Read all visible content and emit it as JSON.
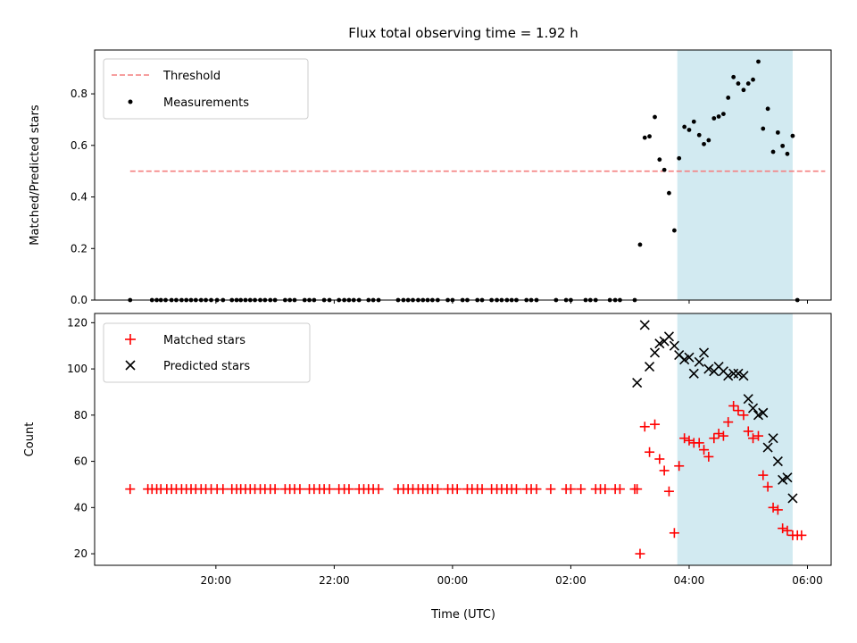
{
  "chart_data": [
    {
      "type": "scatter",
      "title": "Flux total observing time = 1.92 h",
      "xlabel": "",
      "ylabel": "Matched/Predicted stars",
      "xlim_hours": [
        17.95,
        30.4
      ],
      "ylim": [
        0,
        0.97
      ],
      "yticks": [
        0.0,
        0.2,
        0.4,
        0.6,
        0.8
      ],
      "yticklabels": [
        "0.0",
        "0.2",
        "0.4",
        "0.6",
        "0.8"
      ],
      "threshold": {
        "name": "Threshold",
        "value": 0.5,
        "x_range_hours": [
          18.55,
          30.3
        ],
        "color": "#f47f7f"
      },
      "shaded_region_hours": [
        27.8,
        29.75
      ],
      "shade_color": "#add8e6",
      "legend": {
        "placement": "top-left",
        "entries": [
          "Threshold",
          "Measurements"
        ]
      },
      "series": [
        {
          "name": "Measurements",
          "color": "#000000",
          "marker": "dot",
          "points": [
            [
              18.55,
              0
            ],
            [
              18.92,
              0
            ],
            [
              19.0,
              0
            ],
            [
              19.07,
              0
            ],
            [
              19.15,
              0
            ],
            [
              19.25,
              0
            ],
            [
              19.33,
              0
            ],
            [
              19.42,
              0
            ],
            [
              19.5,
              0
            ],
            [
              19.58,
              0
            ],
            [
              19.66,
              0
            ],
            [
              19.75,
              0
            ],
            [
              19.83,
              0
            ],
            [
              19.92,
              0
            ],
            [
              20.02,
              0
            ],
            [
              20.12,
              0
            ],
            [
              20.27,
              0
            ],
            [
              20.35,
              0
            ],
            [
              20.42,
              0
            ],
            [
              20.5,
              0
            ],
            [
              20.58,
              0
            ],
            [
              20.66,
              0
            ],
            [
              20.75,
              0
            ],
            [
              20.83,
              0
            ],
            [
              20.92,
              0
            ],
            [
              21.0,
              0
            ],
            [
              21.17,
              0
            ],
            [
              21.25,
              0
            ],
            [
              21.33,
              0
            ],
            [
              21.5,
              0
            ],
            [
              21.58,
              0
            ],
            [
              21.66,
              0
            ],
            [
              21.83,
              0
            ],
            [
              21.92,
              0
            ],
            [
              22.08,
              0
            ],
            [
              22.17,
              0
            ],
            [
              22.25,
              0
            ],
            [
              22.33,
              0
            ],
            [
              22.42,
              0
            ],
            [
              22.58,
              0
            ],
            [
              22.66,
              0
            ],
            [
              22.75,
              0
            ],
            [
              23.08,
              0
            ],
            [
              23.17,
              0
            ],
            [
              23.25,
              0
            ],
            [
              23.33,
              0
            ],
            [
              23.42,
              0
            ],
            [
              23.5,
              0
            ],
            [
              23.58,
              0
            ],
            [
              23.66,
              0
            ],
            [
              23.75,
              0
            ],
            [
              23.92,
              0
            ],
            [
              24.0,
              0
            ],
            [
              24.17,
              0
            ],
            [
              24.25,
              0
            ],
            [
              24.42,
              0
            ],
            [
              24.5,
              0
            ],
            [
              24.66,
              0
            ],
            [
              24.75,
              0
            ],
            [
              24.83,
              0
            ],
            [
              24.92,
              0
            ],
            [
              25.0,
              0
            ],
            [
              25.08,
              0
            ],
            [
              25.25,
              0
            ],
            [
              25.33,
              0
            ],
            [
              25.42,
              0
            ],
            [
              25.75,
              0
            ],
            [
              25.92,
              0
            ],
            [
              26.0,
              0
            ],
            [
              26.25,
              0
            ],
            [
              26.33,
              0
            ],
            [
              26.42,
              0
            ],
            [
              26.66,
              0
            ],
            [
              26.75,
              0
            ],
            [
              26.83,
              0
            ],
            [
              27.08,
              0
            ],
            [
              27.17,
              0.215
            ],
            [
              27.25,
              0.63
            ],
            [
              27.33,
              0.635
            ],
            [
              27.42,
              0.71
            ],
            [
              27.5,
              0.545
            ],
            [
              27.58,
              0.505
            ],
            [
              27.66,
              0.415
            ],
            [
              27.75,
              0.27
            ],
            [
              27.83,
              0.55
            ],
            [
              27.92,
              0.672
            ],
            [
              28.0,
              0.66
            ],
            [
              28.08,
              0.692
            ],
            [
              28.17,
              0.64
            ],
            [
              28.25,
              0.605
            ],
            [
              28.33,
              0.62
            ],
            [
              28.42,
              0.705
            ],
            [
              28.5,
              0.712
            ],
            [
              28.58,
              0.722
            ],
            [
              28.66,
              0.785
            ],
            [
              28.75,
              0.865
            ],
            [
              28.83,
              0.84
            ],
            [
              28.92,
              0.815
            ],
            [
              29.0,
              0.84
            ],
            [
              29.08,
              0.855
            ],
            [
              29.17,
              0.925
            ],
            [
              29.25,
              0.665
            ],
            [
              29.33,
              0.742
            ],
            [
              29.42,
              0.575
            ],
            [
              29.5,
              0.65
            ],
            [
              29.58,
              0.598
            ],
            [
              29.66,
              0.567
            ],
            [
              29.75,
              0.637
            ],
            [
              29.83,
              0
            ]
          ]
        }
      ]
    },
    {
      "type": "scatter",
      "title": "",
      "xlabel": "Time (UTC)",
      "ylabel": "Count",
      "xlim_hours": [
        17.95,
        30.4
      ],
      "ylim": [
        15,
        124
      ],
      "yticks": [
        20,
        40,
        60,
        80,
        100,
        120
      ],
      "yticklabels": [
        "20",
        "40",
        "60",
        "80",
        "100",
        "120"
      ],
      "xticks_hours": [
        20,
        22,
        24,
        26,
        28,
        30
      ],
      "xticklabels": [
        "20:00",
        "22:00",
        "00:00",
        "02:00",
        "04:00",
        "06:00"
      ],
      "shaded_region_hours": [
        27.8,
        29.75
      ],
      "shade_color": "#add8e6",
      "legend": {
        "placement": "top-left",
        "entries": [
          "Matched stars",
          "Predicted stars"
        ]
      },
      "series": [
        {
          "name": "Matched stars",
          "color": "#ff0000",
          "marker": "plus",
          "points": [
            [
              18.55,
              48
            ],
            [
              18.85,
              48
            ],
            [
              18.92,
              48
            ],
            [
              19.0,
              48
            ],
            [
              19.07,
              48
            ],
            [
              19.17,
              48
            ],
            [
              19.25,
              48
            ],
            [
              19.33,
              48
            ],
            [
              19.42,
              48
            ],
            [
              19.5,
              48
            ],
            [
              19.58,
              48
            ],
            [
              19.66,
              48
            ],
            [
              19.75,
              48
            ],
            [
              19.83,
              48
            ],
            [
              19.92,
              48
            ],
            [
              20.02,
              48
            ],
            [
              20.12,
              48
            ],
            [
              20.27,
              48
            ],
            [
              20.35,
              48
            ],
            [
              20.42,
              48
            ],
            [
              20.5,
              48
            ],
            [
              20.58,
              48
            ],
            [
              20.66,
              48
            ],
            [
              20.75,
              48
            ],
            [
              20.83,
              48
            ],
            [
              20.92,
              48
            ],
            [
              21.0,
              48
            ],
            [
              21.17,
              48
            ],
            [
              21.25,
              48
            ],
            [
              21.33,
              48
            ],
            [
              21.42,
              48
            ],
            [
              21.58,
              48
            ],
            [
              21.66,
              48
            ],
            [
              21.75,
              48
            ],
            [
              21.83,
              48
            ],
            [
              21.92,
              48
            ],
            [
              22.08,
              48
            ],
            [
              22.17,
              48
            ],
            [
              22.25,
              48
            ],
            [
              22.42,
              48
            ],
            [
              22.5,
              48
            ],
            [
              22.58,
              48
            ],
            [
              22.66,
              48
            ],
            [
              22.75,
              48
            ],
            [
              23.08,
              48
            ],
            [
              23.17,
              48
            ],
            [
              23.25,
              48
            ],
            [
              23.33,
              48
            ],
            [
              23.42,
              48
            ],
            [
              23.5,
              48
            ],
            [
              23.58,
              48
            ],
            [
              23.66,
              48
            ],
            [
              23.75,
              48
            ],
            [
              23.92,
              48
            ],
            [
              24.0,
              48
            ],
            [
              24.08,
              48
            ],
            [
              24.25,
              48
            ],
            [
              24.33,
              48
            ],
            [
              24.42,
              48
            ],
            [
              24.5,
              48
            ],
            [
              24.66,
              48
            ],
            [
              24.75,
              48
            ],
            [
              24.83,
              48
            ],
            [
              24.92,
              48
            ],
            [
              25.0,
              48
            ],
            [
              25.08,
              48
            ],
            [
              25.25,
              48
            ],
            [
              25.33,
              48
            ],
            [
              25.42,
              48
            ],
            [
              25.66,
              48
            ],
            [
              25.92,
              48
            ],
            [
              26.0,
              48
            ],
            [
              26.17,
              48
            ],
            [
              26.42,
              48
            ],
            [
              26.5,
              48
            ],
            [
              26.58,
              48
            ],
            [
              26.75,
              48
            ],
            [
              26.83,
              48
            ],
            [
              27.08,
              48
            ],
            [
              27.12,
              48
            ],
            [
              27.17,
              20
            ],
            [
              27.25,
              75
            ],
            [
              27.33,
              64
            ],
            [
              27.42,
              76
            ],
            [
              27.5,
              61
            ],
            [
              27.58,
              56
            ],
            [
              27.66,
              47
            ],
            [
              27.75,
              29
            ],
            [
              27.83,
              58
            ],
            [
              27.92,
              70
            ],
            [
              28.0,
              69
            ],
            [
              28.08,
              68
            ],
            [
              28.17,
              68
            ],
            [
              28.25,
              65
            ],
            [
              28.33,
              62
            ],
            [
              28.42,
              70
            ],
            [
              28.5,
              72
            ],
            [
              28.58,
              71
            ],
            [
              28.66,
              77
            ],
            [
              28.75,
              84
            ],
            [
              28.83,
              82
            ],
            [
              28.92,
              80
            ],
            [
              29.0,
              73
            ],
            [
              29.08,
              70
            ],
            [
              29.17,
              71
            ],
            [
              29.25,
              54
            ],
            [
              29.33,
              49
            ],
            [
              29.42,
              40
            ],
            [
              29.5,
              39
            ],
            [
              29.58,
              31
            ],
            [
              29.66,
              30
            ],
            [
              29.75,
              28
            ],
            [
              29.83,
              28
            ],
            [
              29.9,
              28
            ]
          ]
        },
        {
          "name": "Predicted stars",
          "color": "#000000",
          "marker": "x",
          "points": [
            [
              27.12,
              94
            ],
            [
              27.25,
              119
            ],
            [
              27.33,
              101
            ],
            [
              27.42,
              107
            ],
            [
              27.5,
              111
            ],
            [
              27.58,
              112
            ],
            [
              27.66,
              114
            ],
            [
              27.75,
              110
            ],
            [
              27.83,
              106
            ],
            [
              27.92,
              104
            ],
            [
              28.0,
              105
            ],
            [
              28.08,
              98
            ],
            [
              28.17,
              103
            ],
            [
              28.25,
              107
            ],
            [
              28.33,
              100
            ],
            [
              28.42,
              99
            ],
            [
              28.5,
              101
            ],
            [
              28.58,
              99
            ],
            [
              28.66,
              97
            ],
            [
              28.75,
              98
            ],
            [
              28.83,
              98
            ],
            [
              28.92,
              97
            ],
            [
              29.0,
              87
            ],
            [
              29.08,
              83
            ],
            [
              29.17,
              80
            ],
            [
              29.25,
              81
            ],
            [
              29.33,
              66
            ],
            [
              29.42,
              70
            ],
            [
              29.5,
              60
            ],
            [
              29.58,
              52
            ],
            [
              29.66,
              53
            ],
            [
              29.75,
              44
            ]
          ]
        }
      ]
    }
  ]
}
